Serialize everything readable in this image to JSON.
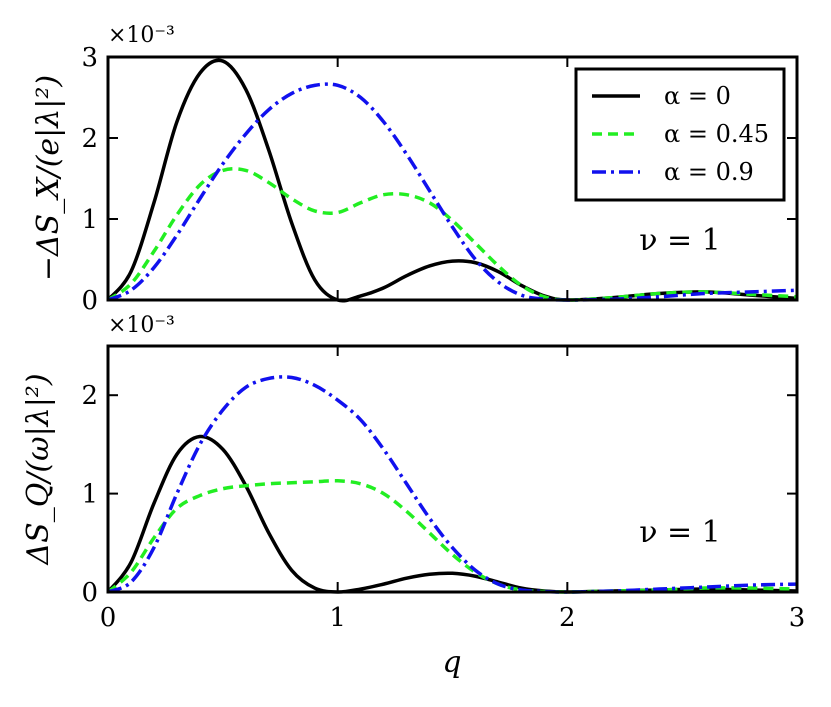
{
  "chart_data": [
    {
      "type": "line",
      "ylabel": "−ΔS_X/(e|λ|²)",
      "y_multiplier": "×10⁻³",
      "annotation": "ν = 1",
      "xlim": [
        0,
        3
      ],
      "ylim": [
        0,
        3
      ],
      "x_ticks": [
        "0",
        "1",
        "2",
        "3"
      ],
      "y_ticks": [
        "0",
        "1",
        "2",
        "3"
      ],
      "legend_position": "upper right",
      "series": [
        {
          "name": "α = 0",
          "color": "#000000",
          "style": "solid",
          "x": [
            0,
            0.1,
            0.2,
            0.3,
            0.4,
            0.5,
            0.6,
            0.7,
            0.8,
            0.9,
            1.0,
            1.1,
            1.2,
            1.3,
            1.4,
            1.5,
            1.6,
            1.7,
            1.8,
            1.9,
            2.0,
            2.2,
            2.4,
            2.6,
            2.8,
            3.0
          ],
          "y": [
            0,
            0.35,
            1.2,
            2.2,
            2.8,
            2.95,
            2.6,
            1.85,
            0.95,
            0.25,
            0,
            0.05,
            0.15,
            0.3,
            0.42,
            0.48,
            0.46,
            0.35,
            0.18,
            0.05,
            0,
            0.03,
            0.08,
            0.1,
            0.06,
            0.02
          ]
        },
        {
          "name": "α = 0.45",
          "color": "#22ee22",
          "style": "dashed",
          "x": [
            0,
            0.1,
            0.2,
            0.3,
            0.4,
            0.5,
            0.6,
            0.7,
            0.8,
            0.9,
            1.0,
            1.1,
            1.2,
            1.3,
            1.4,
            1.5,
            1.6,
            1.7,
            1.8,
            1.9,
            2.0,
            2.2,
            2.4,
            2.6,
            2.8,
            3.0
          ],
          "y": [
            0,
            0.2,
            0.6,
            1.05,
            1.42,
            1.6,
            1.6,
            1.45,
            1.25,
            1.1,
            1.08,
            1.2,
            1.3,
            1.3,
            1.2,
            0.98,
            0.7,
            0.42,
            0.18,
            0.04,
            0,
            0.03,
            0.08,
            0.1,
            0.07,
            0.04
          ]
        },
        {
          "name": "α = 0.9",
          "color": "#1111ee",
          "style": "dashdot",
          "x": [
            0,
            0.1,
            0.2,
            0.3,
            0.4,
            0.5,
            0.6,
            0.7,
            0.8,
            0.9,
            1.0,
            1.1,
            1.2,
            1.3,
            1.4,
            1.5,
            1.6,
            1.7,
            1.8,
            1.9,
            2.0,
            2.2,
            2.4,
            2.6,
            2.8,
            3.0
          ],
          "y": [
            0,
            0.12,
            0.4,
            0.8,
            1.25,
            1.68,
            2.05,
            2.35,
            2.55,
            2.65,
            2.65,
            2.5,
            2.2,
            1.8,
            1.35,
            0.9,
            0.5,
            0.22,
            0.06,
            0.01,
            0,
            0.01,
            0.04,
            0.08,
            0.1,
            0.12
          ]
        }
      ]
    },
    {
      "type": "line",
      "xlabel": "q",
      "ylabel": "ΔS_Q/(ω|λ|²)",
      "y_multiplier": "×10⁻³",
      "annotation": "ν = 1",
      "xlim": [
        0,
        3
      ],
      "ylim": [
        0,
        2.5
      ],
      "x_ticks": [
        "0",
        "1",
        "2",
        "3"
      ],
      "y_ticks": [
        "0",
        "1",
        "2"
      ],
      "series": [
        {
          "name": "α = 0",
          "color": "#000000",
          "style": "solid",
          "x": [
            0,
            0.1,
            0.2,
            0.3,
            0.4,
            0.5,
            0.6,
            0.7,
            0.8,
            0.9,
            1.0,
            1.1,
            1.2,
            1.3,
            1.4,
            1.5,
            1.6,
            1.7,
            1.8,
            1.9,
            2.0,
            2.2,
            2.4,
            2.6,
            2.8,
            3.0
          ],
          "y": [
            0,
            0.3,
            0.9,
            1.4,
            1.58,
            1.45,
            1.08,
            0.6,
            0.22,
            0.04,
            0,
            0.03,
            0.08,
            0.14,
            0.18,
            0.19,
            0.16,
            0.1,
            0.04,
            0.01,
            0,
            0.01,
            0.02,
            0.03,
            0.02,
            0.01
          ]
        },
        {
          "name": "α = 0.45",
          "color": "#22ee22",
          "style": "dashed",
          "x": [
            0,
            0.1,
            0.2,
            0.3,
            0.4,
            0.5,
            0.6,
            0.7,
            0.8,
            0.9,
            1.0,
            1.1,
            1.2,
            1.3,
            1.4,
            1.5,
            1.6,
            1.7,
            1.8,
            1.9,
            2.0,
            2.2,
            2.4,
            2.6,
            2.8,
            3.0
          ],
          "y": [
            0,
            0.2,
            0.55,
            0.85,
            0.98,
            1.05,
            1.08,
            1.1,
            1.11,
            1.12,
            1.13,
            1.1,
            1.0,
            0.82,
            0.6,
            0.38,
            0.2,
            0.08,
            0.02,
            0.005,
            0,
            0.01,
            0.02,
            0.04,
            0.04,
            0.03
          ]
        },
        {
          "name": "α = 0.9",
          "color": "#1111ee",
          "style": "dashdot",
          "x": [
            0,
            0.1,
            0.2,
            0.3,
            0.4,
            0.5,
            0.6,
            0.7,
            0.8,
            0.9,
            1.0,
            1.1,
            1.2,
            1.3,
            1.4,
            1.5,
            1.6,
            1.7,
            1.8,
            1.9,
            2.0,
            2.2,
            2.4,
            2.6,
            2.8,
            3.0
          ],
          "y": [
            0,
            0.1,
            0.45,
            1.0,
            1.5,
            1.85,
            2.08,
            2.17,
            2.18,
            2.1,
            1.95,
            1.75,
            1.45,
            1.1,
            0.75,
            0.45,
            0.22,
            0.08,
            0.02,
            0.005,
            0,
            0.01,
            0.03,
            0.05,
            0.07,
            0.08
          ]
        }
      ]
    }
  ]
}
